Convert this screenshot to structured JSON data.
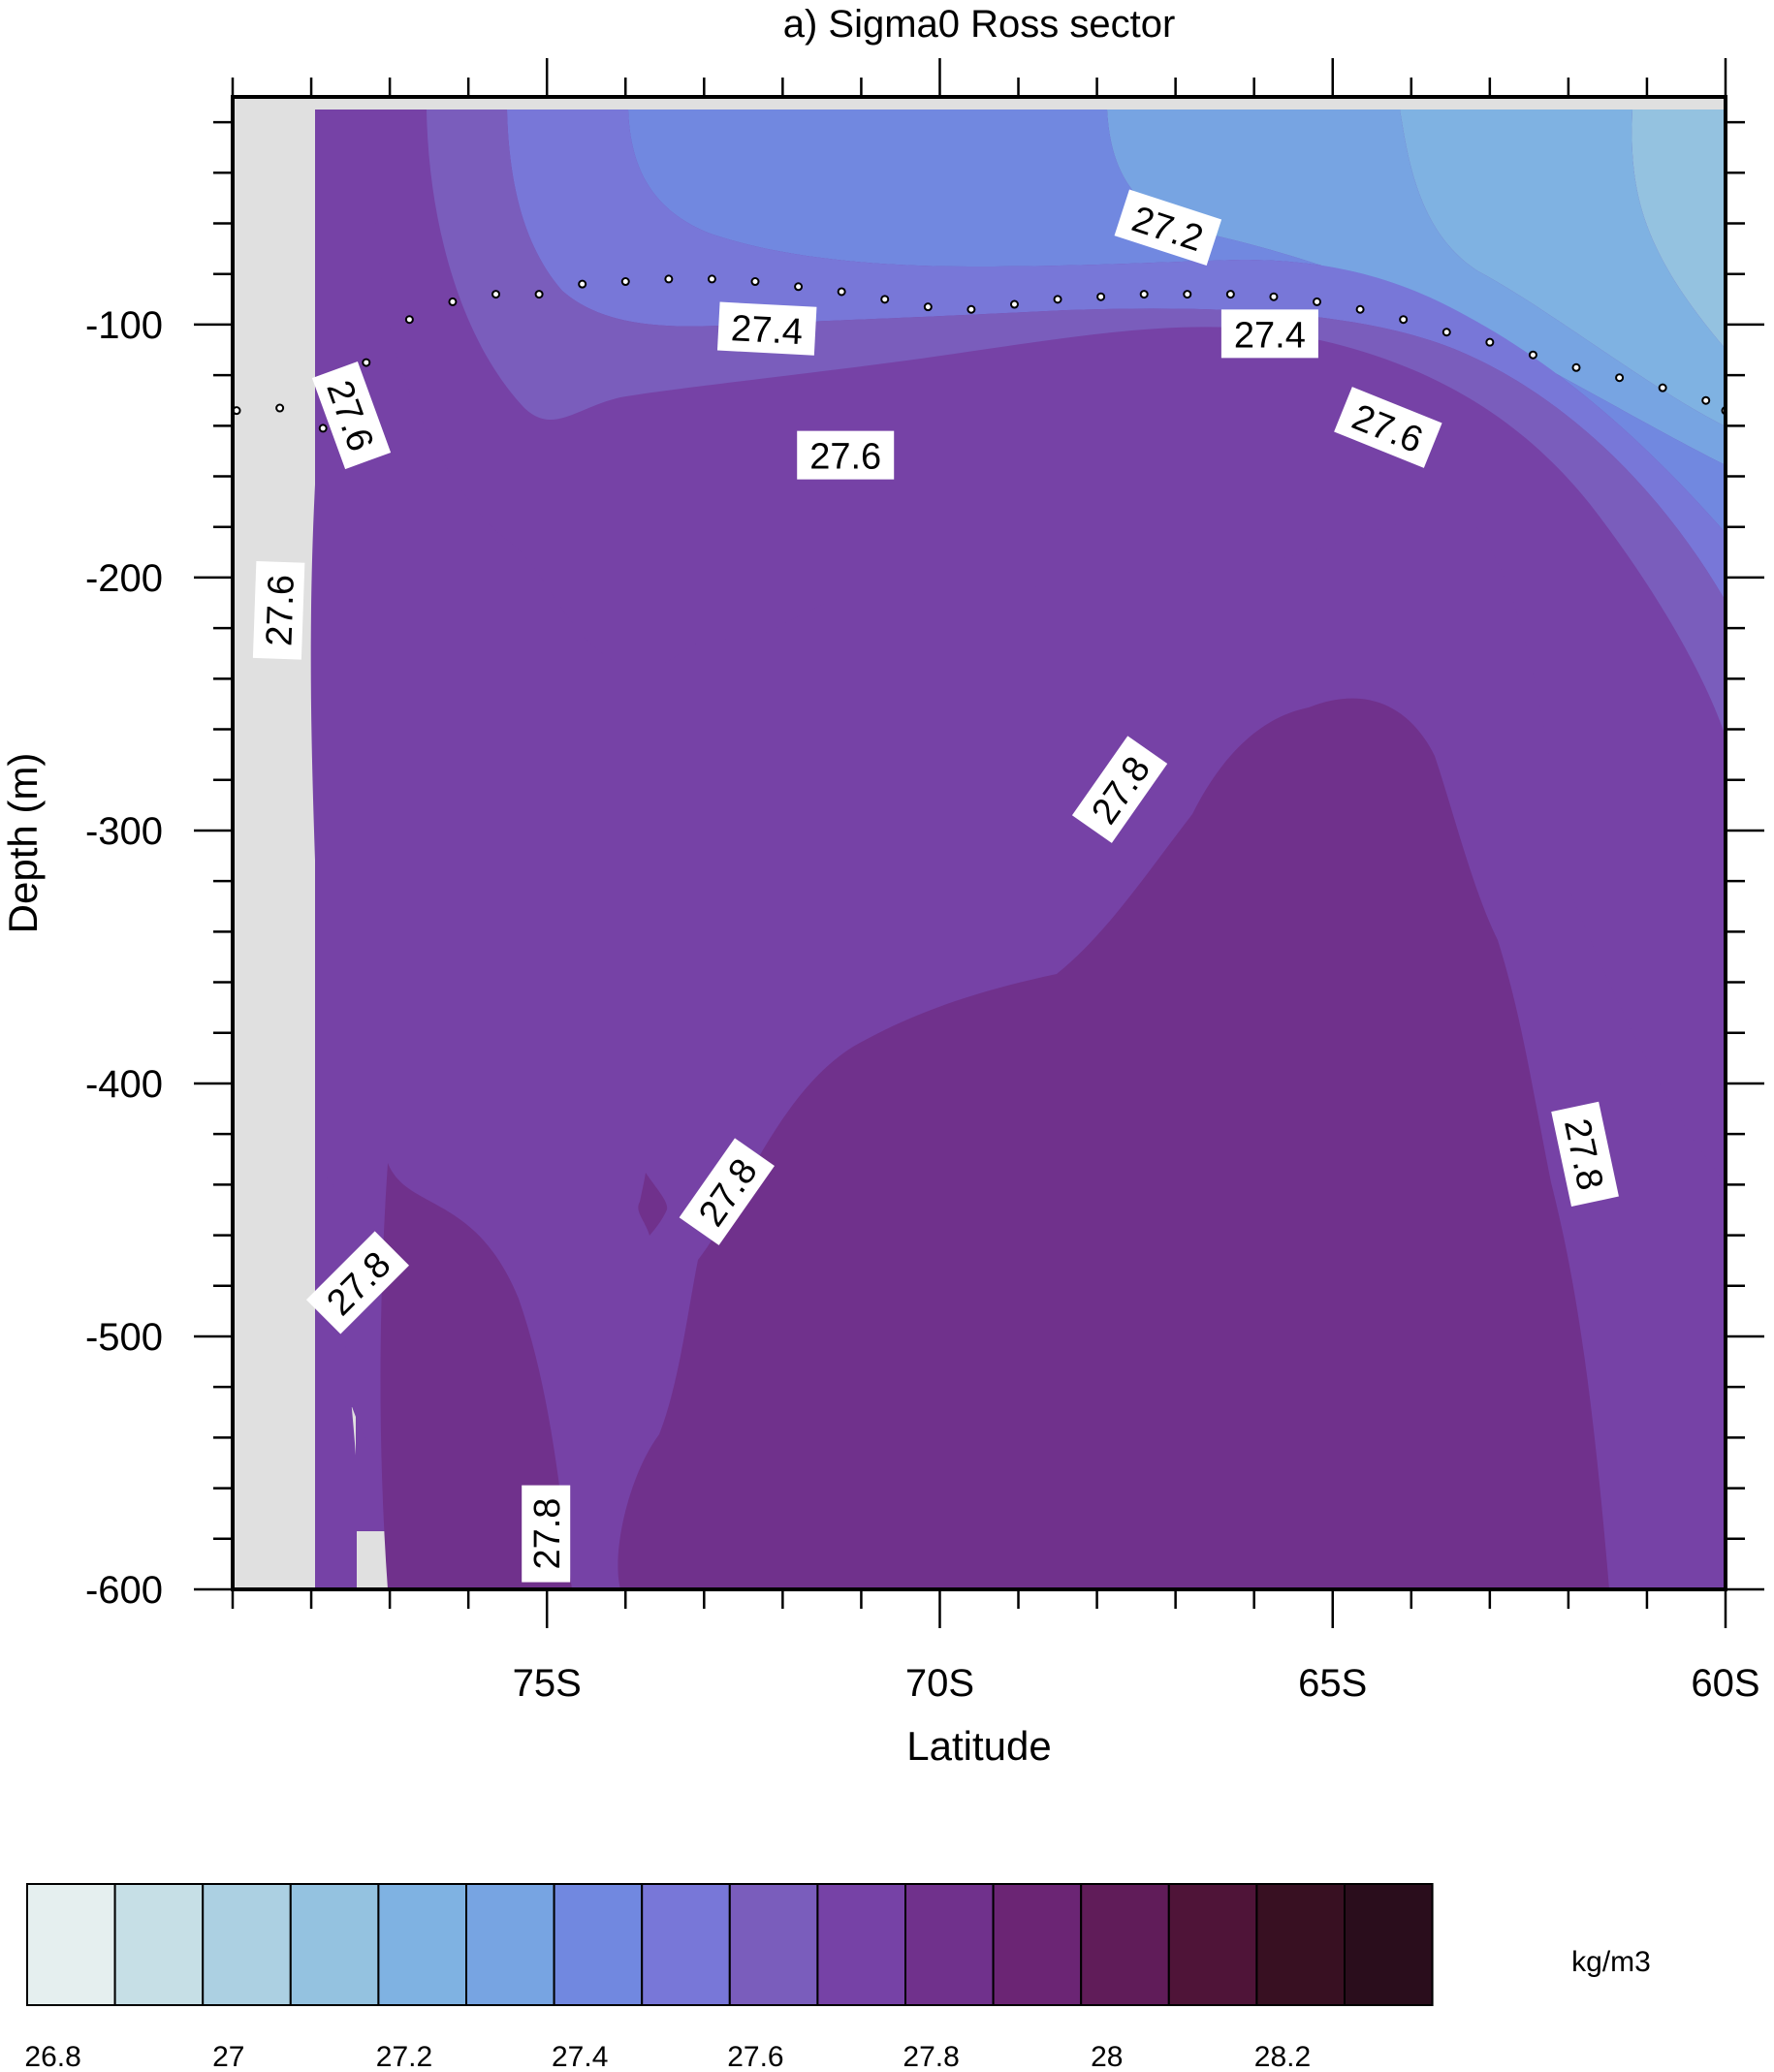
{
  "chart_data": {
    "type": "contour",
    "title": "a) Sigma0 Ross sector",
    "xlabel": "Latitude",
    "ylabel": "Depth (m)",
    "xlim": [
      -79,
      -60
    ],
    "ylim": [
      -600,
      -10
    ],
    "x_ticks": [
      {
        "value": -75,
        "label": "75S"
      },
      {
        "value": -70,
        "label": "70S"
      },
      {
        "value": -65,
        "label": "65S"
      },
      {
        "value": -60,
        "label": "60S"
      }
    ],
    "y_ticks": [
      {
        "value": -100,
        "label": "-100"
      },
      {
        "value": -200,
        "label": "-200"
      },
      {
        "value": -300,
        "label": "-300"
      },
      {
        "value": -400,
        "label": "-400"
      },
      {
        "value": -500,
        "label": "-500"
      },
      {
        "value": -600,
        "label": "-600"
      }
    ],
    "land_color": "#e0e0e0",
    "fill_levels": [
      {
        "min": 27.1,
        "max": 27.2,
        "color": "#94c2e0"
      },
      {
        "min": 27.2,
        "max": 27.3,
        "color": "#7fb2e2"
      },
      {
        "min": 27.3,
        "max": 27.4,
        "color": "#77a4e2"
      },
      {
        "min": 27.4,
        "max": 27.5,
        "color": "#7188e0"
      },
      {
        "min": 27.5,
        "max": 27.6,
        "color": "#7877d8"
      },
      {
        "min": 27.6,
        "max": 27.7,
        "color": "#7a5dbc"
      },
      {
        "min": 27.7,
        "max": 27.8,
        "color": "#7642a6"
      },
      {
        "min": 27.8,
        "max": 27.9,
        "color": "#70318c"
      }
    ],
    "contour_labels": [
      {
        "text": "27.2",
        "x": -67.1,
        "y": -62,
        "angle": 18
      },
      {
        "text": "27.4",
        "x": -72.2,
        "y": -102,
        "angle": 3
      },
      {
        "text": "27.4",
        "x": -65.8,
        "y": -104,
        "angle": 0
      },
      {
        "text": "27.6",
        "x": -77.5,
        "y": -136,
        "angle": 70
      },
      {
        "text": "27.6",
        "x": -71.2,
        "y": -152,
        "angle": 0
      },
      {
        "text": "27.6",
        "x": -64.3,
        "y": -141,
        "angle": 22
      },
      {
        "text": "27.6",
        "x": -78.4,
        "y": -213,
        "angle": -88
      },
      {
        "text": "27.8",
        "x": -67.7,
        "y": -284,
        "angle": -55
      },
      {
        "text": "27.8",
        "x": -61.8,
        "y": -428,
        "angle": 78
      },
      {
        "text": "27.8",
        "x": -72.7,
        "y": -443,
        "angle": -55
      },
      {
        "text": "27.8",
        "x": -77.4,
        "y": -479,
        "angle": -45
      },
      {
        "text": "27.8",
        "x": -75.0,
        "y": -578,
        "angle": -90
      }
    ],
    "mixed_layer_points": [
      {
        "lat": -78.95,
        "depth": -134
      },
      {
        "lat": -78.4,
        "depth": -133
      },
      {
        "lat": -77.85,
        "depth": -141
      },
      {
        "lat": -77.3,
        "depth": -115
      },
      {
        "lat": -76.75,
        "depth": -98
      },
      {
        "lat": -76.2,
        "depth": -91
      },
      {
        "lat": -75.65,
        "depth": -88
      },
      {
        "lat": -75.1,
        "depth": -88
      },
      {
        "lat": -74.55,
        "depth": -84
      },
      {
        "lat": -74.0,
        "depth": -83
      },
      {
        "lat": -73.45,
        "depth": -82
      },
      {
        "lat": -72.9,
        "depth": -82
      },
      {
        "lat": -72.35,
        "depth": -83
      },
      {
        "lat": -71.8,
        "depth": -85
      },
      {
        "lat": -71.25,
        "depth": -87
      },
      {
        "lat": -70.7,
        "depth": -90
      },
      {
        "lat": -70.15,
        "depth": -93
      },
      {
        "lat": -69.6,
        "depth": -94
      },
      {
        "lat": -69.05,
        "depth": -92
      },
      {
        "lat": -68.5,
        "depth": -90
      },
      {
        "lat": -67.95,
        "depth": -89
      },
      {
        "lat": -67.4,
        "depth": -88
      },
      {
        "lat": -66.85,
        "depth": -88
      },
      {
        "lat": -66.3,
        "depth": -88
      },
      {
        "lat": -65.75,
        "depth": -89
      },
      {
        "lat": -65.2,
        "depth": -91
      },
      {
        "lat": -64.65,
        "depth": -94
      },
      {
        "lat": -64.1,
        "depth": -98
      },
      {
        "lat": -63.55,
        "depth": -103
      },
      {
        "lat": -63.0,
        "depth": -107
      },
      {
        "lat": -62.45,
        "depth": -112
      },
      {
        "lat": -61.9,
        "depth": -117
      },
      {
        "lat": -61.35,
        "depth": -121
      },
      {
        "lat": -60.8,
        "depth": -125
      },
      {
        "lat": -60.25,
        "depth": -130
      },
      {
        "lat": -60.0,
        "depth": -134
      }
    ],
    "colorbar": {
      "colors": [
        "#e5efef",
        "#c6dfe6",
        "#acd0e2",
        "#94c2e0",
        "#7fb2e2",
        "#77a4e2",
        "#7188e0",
        "#7877d8",
        "#7a5dbc",
        "#7642a6",
        "#70318c",
        "#6b2574",
        "#601c59",
        "#4f1438",
        "#381022",
        "#2a0d1c"
      ],
      "tick_labels": [
        "26.8",
        "27",
        "27.2",
        "27.4",
        "27.6",
        "27.8",
        "28",
        "28.2"
      ],
      "units": "kg/m3"
    }
  }
}
